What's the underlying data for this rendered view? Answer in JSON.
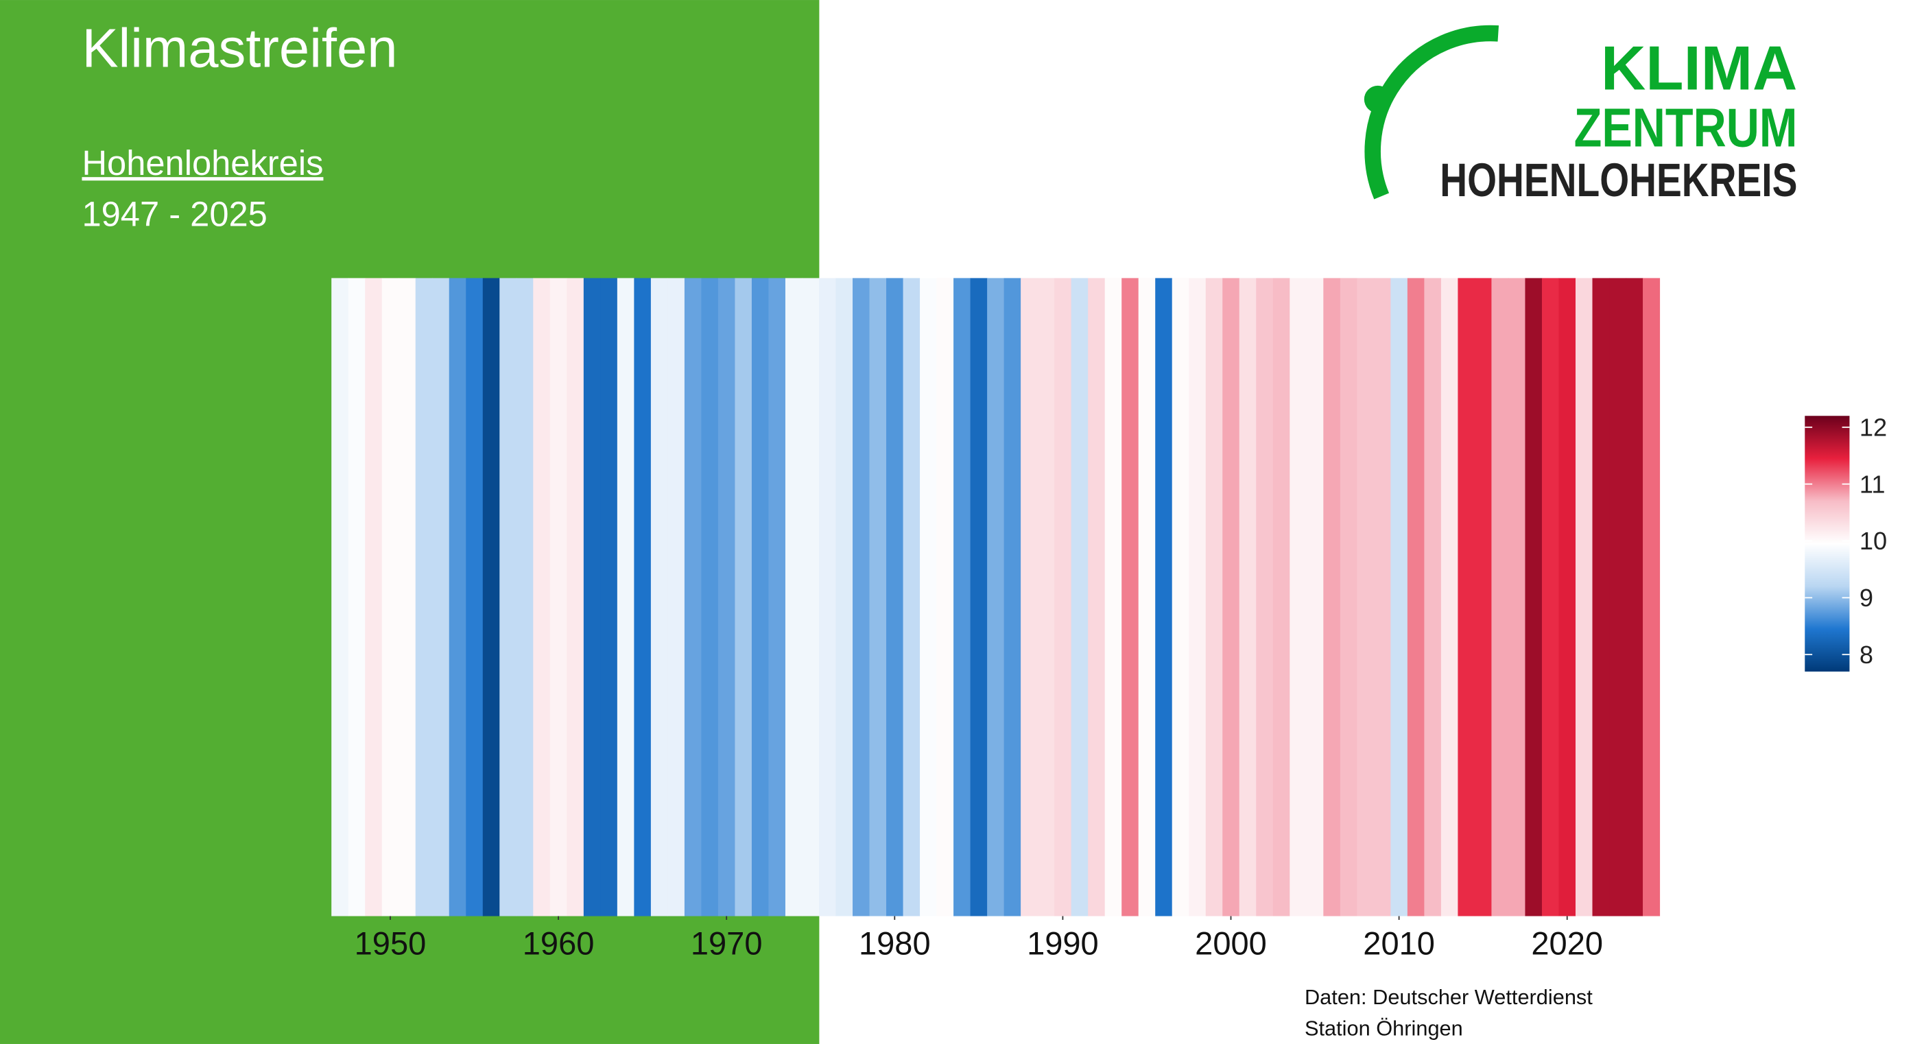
{
  "chart_data": {
    "type": "stripes",
    "title": "Klimastreifen",
    "subtitle": "Hohenlohekreis",
    "period": "1947 - 2025",
    "x": [
      1947,
      1948,
      1949,
      1950,
      1951,
      1952,
      1953,
      1954,
      1955,
      1956,
      1957,
      1958,
      1959,
      1960,
      1961,
      1962,
      1963,
      1964,
      1965,
      1966,
      1967,
      1968,
      1969,
      1970,
      1971,
      1972,
      1973,
      1974,
      1975,
      1976,
      1977,
      1978,
      1979,
      1980,
      1981,
      1982,
      1983,
      1984,
      1985,
      1986,
      1987,
      1988,
      1989,
      1990,
      1991,
      1992,
      1993,
      1994,
      1995,
      1996,
      1997,
      1998,
      1999,
      2000,
      2001,
      2002,
      2003,
      2004,
      2005,
      2006,
      2007,
      2008,
      2009,
      2010,
      2011,
      2012,
      2013,
      2014,
      2015,
      2016,
      2017,
      2018,
      2019,
      2020,
      2021,
      2022,
      2023,
      2024,
      2025
    ],
    "values": [
      9.8,
      9.9,
      10.2,
      10.0,
      10.0,
      9.3,
      9.3,
      8.7,
      8.5,
      7.9,
      9.3,
      9.3,
      10.2,
      10.1,
      10.2,
      8.3,
      8.3,
      9.8,
      8.4,
      9.7,
      9.7,
      8.8,
      8.7,
      8.8,
      9.1,
      8.7,
      8.8,
      9.8,
      9.8,
      9.7,
      9.6,
      8.8,
      9.0,
      8.7,
      9.3,
      9.9,
      10.0,
      8.7,
      8.3,
      8.9,
      8.7,
      10.3,
      10.3,
      10.4,
      9.4,
      10.4,
      10.0,
      11.0,
      10.0,
      8.4,
      10.0,
      10.1,
      10.4,
      10.8,
      10.3,
      10.6,
      10.7,
      10.1,
      10.1,
      10.8,
      10.7,
      10.6,
      10.6,
      9.4,
      11.0,
      10.7,
      10.2,
      11.4,
      11.4,
      10.8,
      10.8,
      11.9,
      11.4,
      11.5,
      10.4,
      11.8,
      11.8,
      11.8,
      11.1
    ],
    "xlim": [
      1946.5,
      2025.5
    ],
    "xticks": [
      1950,
      1960,
      1970,
      1980,
      1990,
      2000,
      2010,
      2020
    ],
    "clim": [
      7.7,
      12.2
    ],
    "cticks": [
      8,
      9,
      10,
      11,
      12
    ],
    "colors": [
      "#003a78",
      "#1f77d0",
      "#b9d6f2",
      "#ffffff",
      "#f7bcc6",
      "#e8203d",
      "#6b001c"
    ]
  },
  "logo": [
    "KLIMA",
    "ZENTRUM",
    "HOHENLOHEKREIS"
  ],
  "source": [
    "Daten: Deutscher Wetterdienst",
    "Station Öhringen"
  ]
}
